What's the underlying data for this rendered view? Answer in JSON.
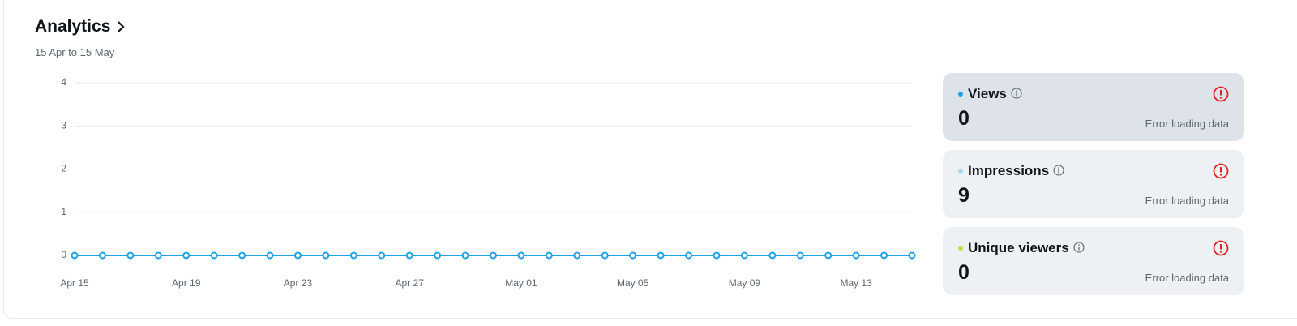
{
  "header": {
    "title": "Analytics",
    "subtitle": "15 Apr to 15 May"
  },
  "chart_data": {
    "type": "line",
    "categories": [
      "Apr 15",
      null,
      null,
      null,
      "Apr 19",
      null,
      null,
      null,
      "Apr 23",
      null,
      null,
      null,
      "Apr 27",
      null,
      null,
      null,
      "May 01",
      null,
      null,
      null,
      "May 05",
      null,
      null,
      null,
      "May 09",
      null,
      null,
      null,
      "May 13",
      null,
      null
    ],
    "series": [
      {
        "name": "Views",
        "color": "#1da1e8",
        "values": [
          0,
          0,
          0,
          0,
          0,
          0,
          0,
          0,
          0,
          0,
          0,
          0,
          0,
          0,
          0,
          0,
          0,
          0,
          0,
          0,
          0,
          0,
          0,
          0,
          0,
          0,
          0,
          0,
          0,
          0,
          0
        ]
      }
    ],
    "ylim": [
      0,
      4
    ],
    "yticks": [
      0,
      1,
      2,
      3,
      4
    ],
    "grid": true
  },
  "cards": [
    {
      "name": "Views",
      "value": 0,
      "status": "Error loading data",
      "color": "#1da1e8"
    },
    {
      "name": "Impressions",
      "value": 9,
      "status": "Error loading data",
      "color": "#a8d8f0"
    },
    {
      "name": "Unique viewers",
      "value": 0,
      "status": "Error loading data",
      "color": "#c8d93a"
    }
  ]
}
